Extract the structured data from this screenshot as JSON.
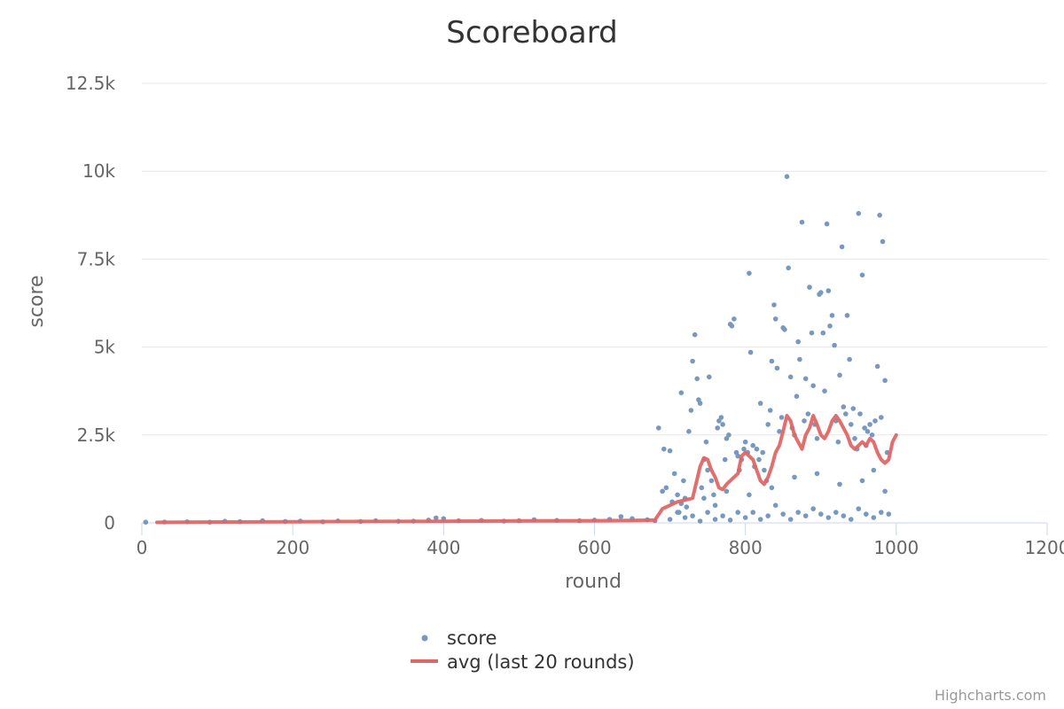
{
  "chart_data": {
    "type": "scatter",
    "title": "Scoreboard",
    "xlabel": "round",
    "ylabel": "score",
    "xlim": [
      0,
      1200
    ],
    "ylim": [
      0,
      12500
    ],
    "x_ticks": [
      0,
      200,
      400,
      600,
      800,
      1000,
      1200
    ],
    "x_tick_labels": [
      "0",
      "200",
      "400",
      "600",
      "800",
      "1000",
      "1200"
    ],
    "y_ticks": [
      0,
      2500,
      5000,
      7500,
      10000,
      12500
    ],
    "y_tick_labels": [
      "0",
      "2.5k",
      "5k",
      "7.5k",
      "10k",
      "12.5k"
    ],
    "grid": true,
    "legend_position": "bottom-center",
    "credits": "Highcharts.com",
    "series": [
      {
        "name": "score",
        "type": "scatter",
        "color": "#7798BF",
        "points": [
          [
            5,
            20
          ],
          [
            30,
            25
          ],
          [
            60,
            30
          ],
          [
            90,
            20
          ],
          [
            110,
            45
          ],
          [
            130,
            35
          ],
          [
            160,
            60
          ],
          [
            190,
            40
          ],
          [
            210,
            50
          ],
          [
            240,
            30
          ],
          [
            260,
            55
          ],
          [
            290,
            40
          ],
          [
            310,
            60
          ],
          [
            340,
            45
          ],
          [
            360,
            50
          ],
          [
            380,
            80
          ],
          [
            390,
            140
          ],
          [
            400,
            120
          ],
          [
            420,
            60
          ],
          [
            450,
            70
          ],
          [
            480,
            50
          ],
          [
            500,
            60
          ],
          [
            520,
            90
          ],
          [
            550,
            70
          ],
          [
            580,
            60
          ],
          [
            600,
            80
          ],
          [
            620,
            100
          ],
          [
            635,
            180
          ],
          [
            650,
            120
          ],
          [
            670,
            90
          ],
          [
            680,
            60
          ],
          [
            685,
            2700
          ],
          [
            690,
            900
          ],
          [
            692,
            2100
          ],
          [
            695,
            1000
          ],
          [
            700,
            2050
          ],
          [
            703,
            600
          ],
          [
            706,
            1400
          ],
          [
            710,
            800
          ],
          [
            712,
            300
          ],
          [
            715,
            3700
          ],
          [
            718,
            1200
          ],
          [
            720,
            700
          ],
          [
            722,
            450
          ],
          [
            725,
            2600
          ],
          [
            728,
            3200
          ],
          [
            730,
            4600
          ],
          [
            733,
            5350
          ],
          [
            736,
            4100
          ],
          [
            738,
            3500
          ],
          [
            740,
            3400
          ],
          [
            742,
            1000
          ],
          [
            745,
            1800
          ],
          [
            748,
            2300
          ],
          [
            750,
            1500
          ],
          [
            752,
            4150
          ],
          [
            755,
            1200
          ],
          [
            758,
            800
          ],
          [
            760,
            500
          ],
          [
            763,
            2700
          ],
          [
            765,
            2900
          ],
          [
            768,
            3000
          ],
          [
            770,
            2800
          ],
          [
            773,
            1800
          ],
          [
            775,
            2400
          ],
          [
            778,
            2500
          ],
          [
            780,
            5650
          ],
          [
            782,
            5600
          ],
          [
            785,
            5800
          ],
          [
            788,
            2000
          ],
          [
            790,
            1900
          ],
          [
            792,
            1500
          ],
          [
            795,
            1800
          ],
          [
            798,
            2100
          ],
          [
            800,
            2300
          ],
          [
            803,
            2000
          ],
          [
            805,
            7100
          ],
          [
            807,
            4850
          ],
          [
            810,
            2200
          ],
          [
            812,
            1600
          ],
          [
            815,
            2100
          ],
          [
            818,
            1800
          ],
          [
            820,
            3400
          ],
          [
            823,
            2000
          ],
          [
            825,
            1500
          ],
          [
            828,
            1200
          ],
          [
            830,
            2800
          ],
          [
            833,
            3200
          ],
          [
            835,
            4600
          ],
          [
            838,
            6200
          ],
          [
            840,
            5800
          ],
          [
            842,
            4400
          ],
          [
            845,
            2600
          ],
          [
            848,
            3000
          ],
          [
            850,
            5550
          ],
          [
            852,
            5500
          ],
          [
            855,
            9850
          ],
          [
            857,
            7250
          ],
          [
            860,
            4150
          ],
          [
            862,
            2700
          ],
          [
            865,
            2500
          ],
          [
            868,
            3600
          ],
          [
            870,
            5150
          ],
          [
            872,
            4650
          ],
          [
            875,
            8550
          ],
          [
            878,
            2900
          ],
          [
            880,
            4100
          ],
          [
            883,
            3100
          ],
          [
            885,
            6700
          ],
          [
            888,
            5400
          ],
          [
            890,
            3900
          ],
          [
            892,
            2800
          ],
          [
            895,
            2400
          ],
          [
            898,
            6500
          ],
          [
            900,
            6550
          ],
          [
            903,
            5400
          ],
          [
            905,
            3750
          ],
          [
            908,
            8500
          ],
          [
            910,
            6600
          ],
          [
            912,
            5600
          ],
          [
            915,
            5900
          ],
          [
            918,
            5050
          ],
          [
            920,
            2900
          ],
          [
            923,
            2300
          ],
          [
            925,
            4200
          ],
          [
            928,
            7850
          ],
          [
            930,
            3300
          ],
          [
            933,
            3100
          ],
          [
            935,
            5900
          ],
          [
            938,
            4650
          ],
          [
            940,
            2800
          ],
          [
            943,
            3250
          ],
          [
            945,
            2400
          ],
          [
            948,
            2100
          ],
          [
            950,
            8800
          ],
          [
            952,
            3100
          ],
          [
            955,
            7050
          ],
          [
            958,
            2700
          ],
          [
            960,
            2200
          ],
          [
            962,
            2600
          ],
          [
            965,
            2800
          ],
          [
            968,
            2500
          ],
          [
            970,
            1500
          ],
          [
            972,
            2900
          ],
          [
            975,
            4450
          ],
          [
            978,
            8750
          ],
          [
            980,
            3000
          ],
          [
            982,
            8000
          ],
          [
            985,
            4050
          ],
          [
            988,
            2000
          ],
          [
            700,
            100
          ],
          [
            710,
            300
          ],
          [
            720,
            150
          ],
          [
            730,
            200
          ],
          [
            740,
            50
          ],
          [
            750,
            300
          ],
          [
            760,
            100
          ],
          [
            770,
            200
          ],
          [
            780,
            80
          ],
          [
            790,
            300
          ],
          [
            800,
            150
          ],
          [
            810,
            300
          ],
          [
            820,
            100
          ],
          [
            830,
            200
          ],
          [
            840,
            500
          ],
          [
            850,
            250
          ],
          [
            860,
            100
          ],
          [
            870,
            300
          ],
          [
            880,
            200
          ],
          [
            890,
            400
          ],
          [
            900,
            250
          ],
          [
            910,
            150
          ],
          [
            920,
            300
          ],
          [
            930,
            200
          ],
          [
            940,
            100
          ],
          [
            950,
            400
          ],
          [
            960,
            250
          ],
          [
            970,
            150
          ],
          [
            980,
            300
          ],
          [
            990,
            250
          ],
          [
            715,
            550
          ],
          [
            745,
            700
          ],
          [
            775,
            900
          ],
          [
            805,
            800
          ],
          [
            835,
            1000
          ],
          [
            865,
            1300
          ],
          [
            895,
            1400
          ],
          [
            925,
            1100
          ],
          [
            955,
            1200
          ],
          [
            985,
            900
          ]
        ]
      },
      {
        "name": "avg (last 20 rounds)",
        "type": "line",
        "color": "#E06666",
        "points": [
          [
            20,
            15
          ],
          [
            100,
            25
          ],
          [
            200,
            30
          ],
          [
            300,
            40
          ],
          [
            400,
            45
          ],
          [
            500,
            55
          ],
          [
            600,
            60
          ],
          [
            650,
            70
          ],
          [
            670,
            75
          ],
          [
            680,
            80
          ],
          [
            690,
            400
          ],
          [
            700,
            500
          ],
          [
            710,
            600
          ],
          [
            720,
            650
          ],
          [
            730,
            700
          ],
          [
            740,
            1600
          ],
          [
            745,
            1850
          ],
          [
            750,
            1800
          ],
          [
            755,
            1500
          ],
          [
            760,
            1300
          ],
          [
            765,
            1000
          ],
          [
            770,
            950
          ],
          [
            775,
            1100
          ],
          [
            780,
            1200
          ],
          [
            790,
            1400
          ],
          [
            795,
            1900
          ],
          [
            800,
            2000
          ],
          [
            805,
            1900
          ],
          [
            810,
            1800
          ],
          [
            815,
            1500
          ],
          [
            820,
            1200
          ],
          [
            825,
            1100
          ],
          [
            830,
            1300
          ],
          [
            835,
            1600
          ],
          [
            840,
            2000
          ],
          [
            845,
            2200
          ],
          [
            850,
            2600
          ],
          [
            855,
            3050
          ],
          [
            860,
            2900
          ],
          [
            865,
            2500
          ],
          [
            870,
            2300
          ],
          [
            875,
            2100
          ],
          [
            880,
            2500
          ],
          [
            885,
            2700
          ],
          [
            890,
            3050
          ],
          [
            895,
            2800
          ],
          [
            900,
            2500
          ],
          [
            905,
            2400
          ],
          [
            910,
            2600
          ],
          [
            915,
            2900
          ],
          [
            920,
            3050
          ],
          [
            925,
            2900
          ],
          [
            930,
            2700
          ],
          [
            935,
            2500
          ],
          [
            940,
            2200
          ],
          [
            945,
            2100
          ],
          [
            950,
            2200
          ],
          [
            955,
            2300
          ],
          [
            960,
            2200
          ],
          [
            965,
            2400
          ],
          [
            970,
            2300
          ],
          [
            975,
            2000
          ],
          [
            980,
            1800
          ],
          [
            985,
            1700
          ],
          [
            990,
            1800
          ],
          [
            995,
            2300
          ],
          [
            1000,
            2500
          ]
        ]
      }
    ]
  }
}
